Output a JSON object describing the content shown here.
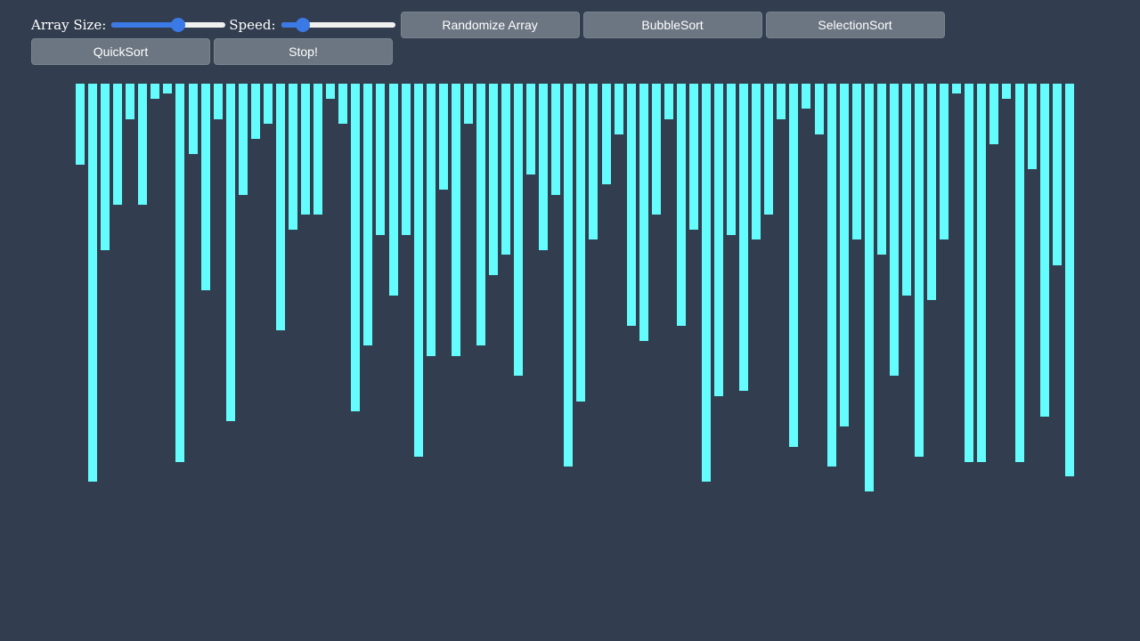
{
  "controls": {
    "array_size_label": "Array Size:",
    "array_size_value": 0.6,
    "speed_label": "Speed:",
    "speed_value": 0.15,
    "buttons": {
      "randomize": "Randomize Array",
      "bubble": "BubbleSort",
      "selection": "SelectionSort",
      "quick": "QuickSort",
      "stop": "Stop!"
    }
  },
  "colors": {
    "background": "#323e4f",
    "bar": "#64fcfc",
    "slider_accent": "#3b79e6",
    "button": "#6c7682"
  },
  "array": {
    "values": [
      16,
      79,
      33,
      24,
      7,
      24,
      3,
      2,
      75,
      14,
      41,
      7,
      67,
      22,
      11,
      8,
      49,
      29,
      26,
      26,
      3,
      8,
      65,
      52,
      30,
      42,
      30,
      74,
      54,
      21,
      54,
      8,
      52,
      38,
      34,
      58,
      18,
      33,
      22,
      76,
      63,
      31,
      20,
      10,
      48,
      51,
      26,
      7,
      48,
      29,
      79,
      62,
      30,
      61,
      31,
      26,
      7,
      72,
      5,
      10,
      76,
      68,
      31,
      81,
      34,
      58,
      42,
      74,
      43,
      31,
      2,
      75,
      75,
      12,
      3,
      75,
      17,
      66,
      36,
      78
    ],
    "max": 100
  }
}
